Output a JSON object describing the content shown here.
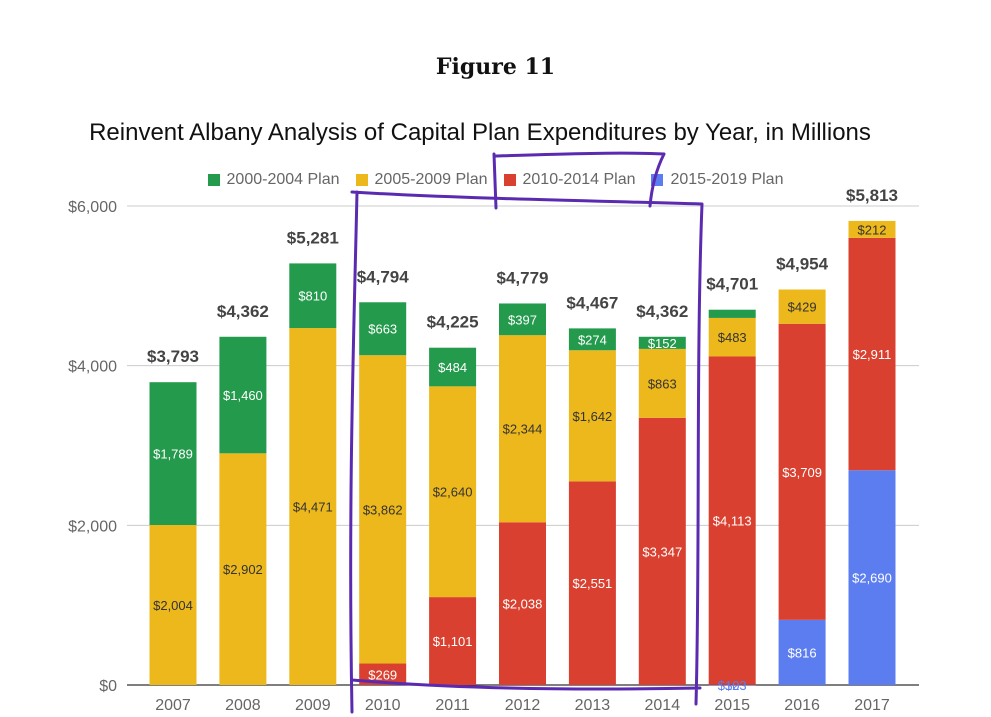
{
  "figure_label": "Figure 11",
  "chart_data": {
    "type": "bar",
    "stacked": true,
    "title": "Reinvent Albany Analysis of Capital Plan Expenditures by Year, in Millions",
    "xlabel": "",
    "ylabel": "",
    "ylim": [
      0,
      6000
    ],
    "yticks": [
      0,
      2000,
      4000,
      6000
    ],
    "ytick_labels": [
      "$0",
      "$2,000",
      "$4,000",
      "$6,000"
    ],
    "grid": true,
    "legend_position": "top",
    "categories": [
      "2007",
      "2008",
      "2009",
      "2010",
      "2011",
      "2012",
      "2013",
      "2014",
      "2015",
      "2016",
      "2017"
    ],
    "series": [
      {
        "name": "2015-2019 Plan",
        "color": "#5b7df0",
        "values": [
          0,
          0,
          0,
          0,
          0,
          0,
          0,
          0,
          2,
          816,
          2690
        ],
        "labels": [
          "",
          "",
          "",
          "",
          "",
          "",
          "",
          "",
          "$2",
          "$816",
          "$2,690"
        ]
      },
      {
        "name": "2010-2014 Plan",
        "color": "#d9402f",
        "values": [
          0,
          0,
          0,
          269,
          1101,
          2038,
          2551,
          3347,
          4113,
          3709,
          2911
        ],
        "labels": [
          "",
          "",
          "",
          "$269",
          "$1,101",
          "$2,038",
          "$2,551",
          "$3,347",
          "$4,113",
          "$3,709",
          "$2,911"
        ]
      },
      {
        "name": "2005-2009 Plan",
        "color": "#edb81c",
        "values": [
          2004,
          2902,
          4471,
          3862,
          2640,
          2344,
          1642,
          863,
          483,
          429,
          212
        ],
        "labels": [
          "$2,004",
          "$2,902",
          "$4,471",
          "$3,862",
          "$2,640",
          "$2,344",
          "$1,642",
          "$863",
          "$483",
          "$429",
          "$212"
        ]
      },
      {
        "name": "2000-2004 Plan",
        "color": "#249a4d",
        "values": [
          1789,
          1460,
          810,
          663,
          484,
          397,
          274,
          152,
          103,
          0,
          0
        ],
        "labels": [
          "$1,789",
          "$1,460",
          "$810",
          "$663",
          "$484",
          "$397",
          "$274",
          "$152",
          "$103",
          "",
          ""
        ]
      }
    ],
    "legend_order": [
      "2000-2004 Plan",
      "2005-2009 Plan",
      "2010-2014 Plan",
      "2015-2019 Plan"
    ],
    "totals": [
      "$3,793",
      "$4,362",
      "$5,281",
      "$4,794",
      "$4,225",
      "$4,779",
      "$4,467",
      "$4,362",
      "$4,701",
      "$4,954",
      "$5,813"
    ],
    "annotation": {
      "type": "hand-drawn-outline",
      "color": "#5a2bb0",
      "covers": [
        "2010",
        "2011",
        "2012",
        "2013",
        "2014"
      ]
    }
  }
}
